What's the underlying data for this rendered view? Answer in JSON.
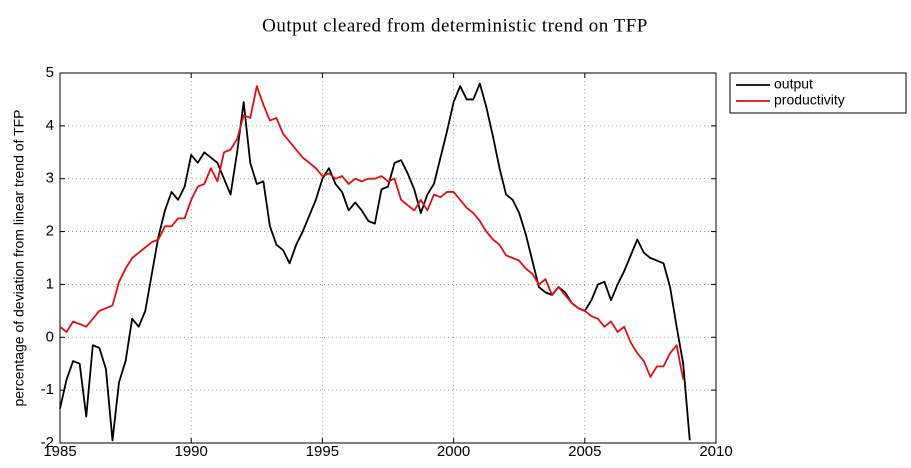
{
  "chart_data": {
    "type": "line",
    "title": "Output cleared from deterministic trend on TFP",
    "y_label": "percentage of deviation from linear trend of TFP",
    "x": [
      1985,
      1985.25,
      1985.5,
      1985.75,
      1986,
      1986.25,
      1986.5,
      1986.75,
      1987,
      1987.25,
      1987.5,
      1987.75,
      1988,
      1988.25,
      1988.5,
      1988.75,
      1989,
      1989.25,
      1989.5,
      1989.75,
      1990,
      1990.25,
      1990.5,
      1990.75,
      1991,
      1991.25,
      1991.5,
      1991.75,
      1992,
      1992.25,
      1992.5,
      1992.75,
      1993,
      1993.25,
      1993.5,
      1993.75,
      1994,
      1994.25,
      1994.5,
      1994.75,
      1995,
      1995.25,
      1995.5,
      1995.75,
      1996,
      1996.25,
      1996.5,
      1996.75,
      1997,
      1997.25,
      1997.5,
      1997.75,
      1998,
      1998.25,
      1998.5,
      1998.75,
      1999,
      1999.25,
      1999.5,
      1999.75,
      2000,
      2000.25,
      2000.5,
      2000.75,
      2001,
      2001.25,
      2001.5,
      2001.75,
      2002,
      2002.25,
      2002.5,
      2002.75,
      2003,
      2003.25,
      2003.5,
      2003.75,
      2004,
      2004.25,
      2004.5,
      2004.75,
      2005,
      2005.25,
      2005.5,
      2005.75,
      2006,
      2006.25,
      2006.5,
      2006.75,
      2007,
      2007.25,
      2007.5,
      2007.75,
      2008,
      2008.25,
      2008.5,
      2008.75,
      2009
    ],
    "series": [
      {
        "name": "output",
        "color": "#000000",
        "values": [
          -1.35,
          -0.8,
          -0.45,
          -0.5,
          -1.5,
          -0.15,
          -0.2,
          -0.6,
          -1.95,
          -0.85,
          -0.45,
          0.35,
          0.2,
          0.5,
          1.2,
          1.9,
          2.4,
          2.75,
          2.6,
          2.85,
          3.45,
          3.3,
          3.5,
          3.4,
          3.3,
          3.0,
          2.7,
          3.5,
          4.45,
          3.3,
          2.9,
          2.95,
          2.1,
          1.75,
          1.65,
          1.4,
          1.75,
          2.0,
          2.3,
          2.6,
          3.0,
          3.2,
          2.9,
          2.75,
          2.4,
          2.55,
          2.4,
          2.2,
          2.15,
          2.8,
          2.85,
          3.3,
          3.35,
          3.1,
          2.8,
          2.35,
          2.7,
          2.9,
          3.4,
          3.9,
          4.45,
          4.75,
          4.5,
          4.5,
          4.8,
          4.35,
          3.8,
          3.2,
          2.7,
          2.6,
          2.35,
          1.95,
          1.45,
          0.95,
          0.85,
          0.8,
          0.95,
          0.85,
          0.65,
          0.55,
          0.5,
          0.7,
          1.0,
          1.05,
          0.7,
          1.0,
          1.25,
          1.55,
          1.85,
          1.6,
          1.5,
          1.45,
          1.4,
          0.95,
          0.2,
          -0.5,
          -1.95
        ]
      },
      {
        "name": "productivity",
        "color": "#e01010",
        "values": [
          0.2,
          0.1,
          0.3,
          0.25,
          0.2,
          0.35,
          0.5,
          0.55,
          0.6,
          1.05,
          1.3,
          1.5,
          1.6,
          1.7,
          1.8,
          1.85,
          2.1,
          2.1,
          2.25,
          2.25,
          2.6,
          2.85,
          2.9,
          3.2,
          2.95,
          3.5,
          3.55,
          3.75,
          4.2,
          4.15,
          4.75,
          4.4,
          4.1,
          4.15,
          3.85,
          3.7,
          3.55,
          3.4,
          3.3,
          3.2,
          3.05,
          3.1,
          3.0,
          3.05,
          2.9,
          3.0,
          2.95,
          3.0,
          3.0,
          3.05,
          2.95,
          3.0,
          2.6,
          2.5,
          2.4,
          2.6,
          2.4,
          2.7,
          2.65,
          2.75,
          2.75,
          2.6,
          2.45,
          2.35,
          2.2,
          2.0,
          1.85,
          1.75,
          1.55,
          1.5,
          1.45,
          1.3,
          1.2,
          1.0,
          1.1,
          0.8,
          0.95,
          0.8,
          0.65,
          0.55,
          0.5,
          0.4,
          0.35,
          0.2,
          0.3,
          0.1,
          0.2,
          -0.1,
          -0.3,
          -0.45,
          -0.75,
          -0.55,
          -0.55,
          -0.3,
          -0.15,
          -0.8,
          null
        ]
      }
    ],
    "xlim": [
      1985,
      2010
    ],
    "xticks": [
      1985,
      1990,
      1995,
      2000,
      2005,
      2010
    ],
    "ylim": [
      -2,
      5
    ],
    "yticks": [
      -2,
      -1,
      0,
      1,
      2,
      3,
      4,
      5
    ],
    "grid": true,
    "legend": "outside-top-right"
  }
}
